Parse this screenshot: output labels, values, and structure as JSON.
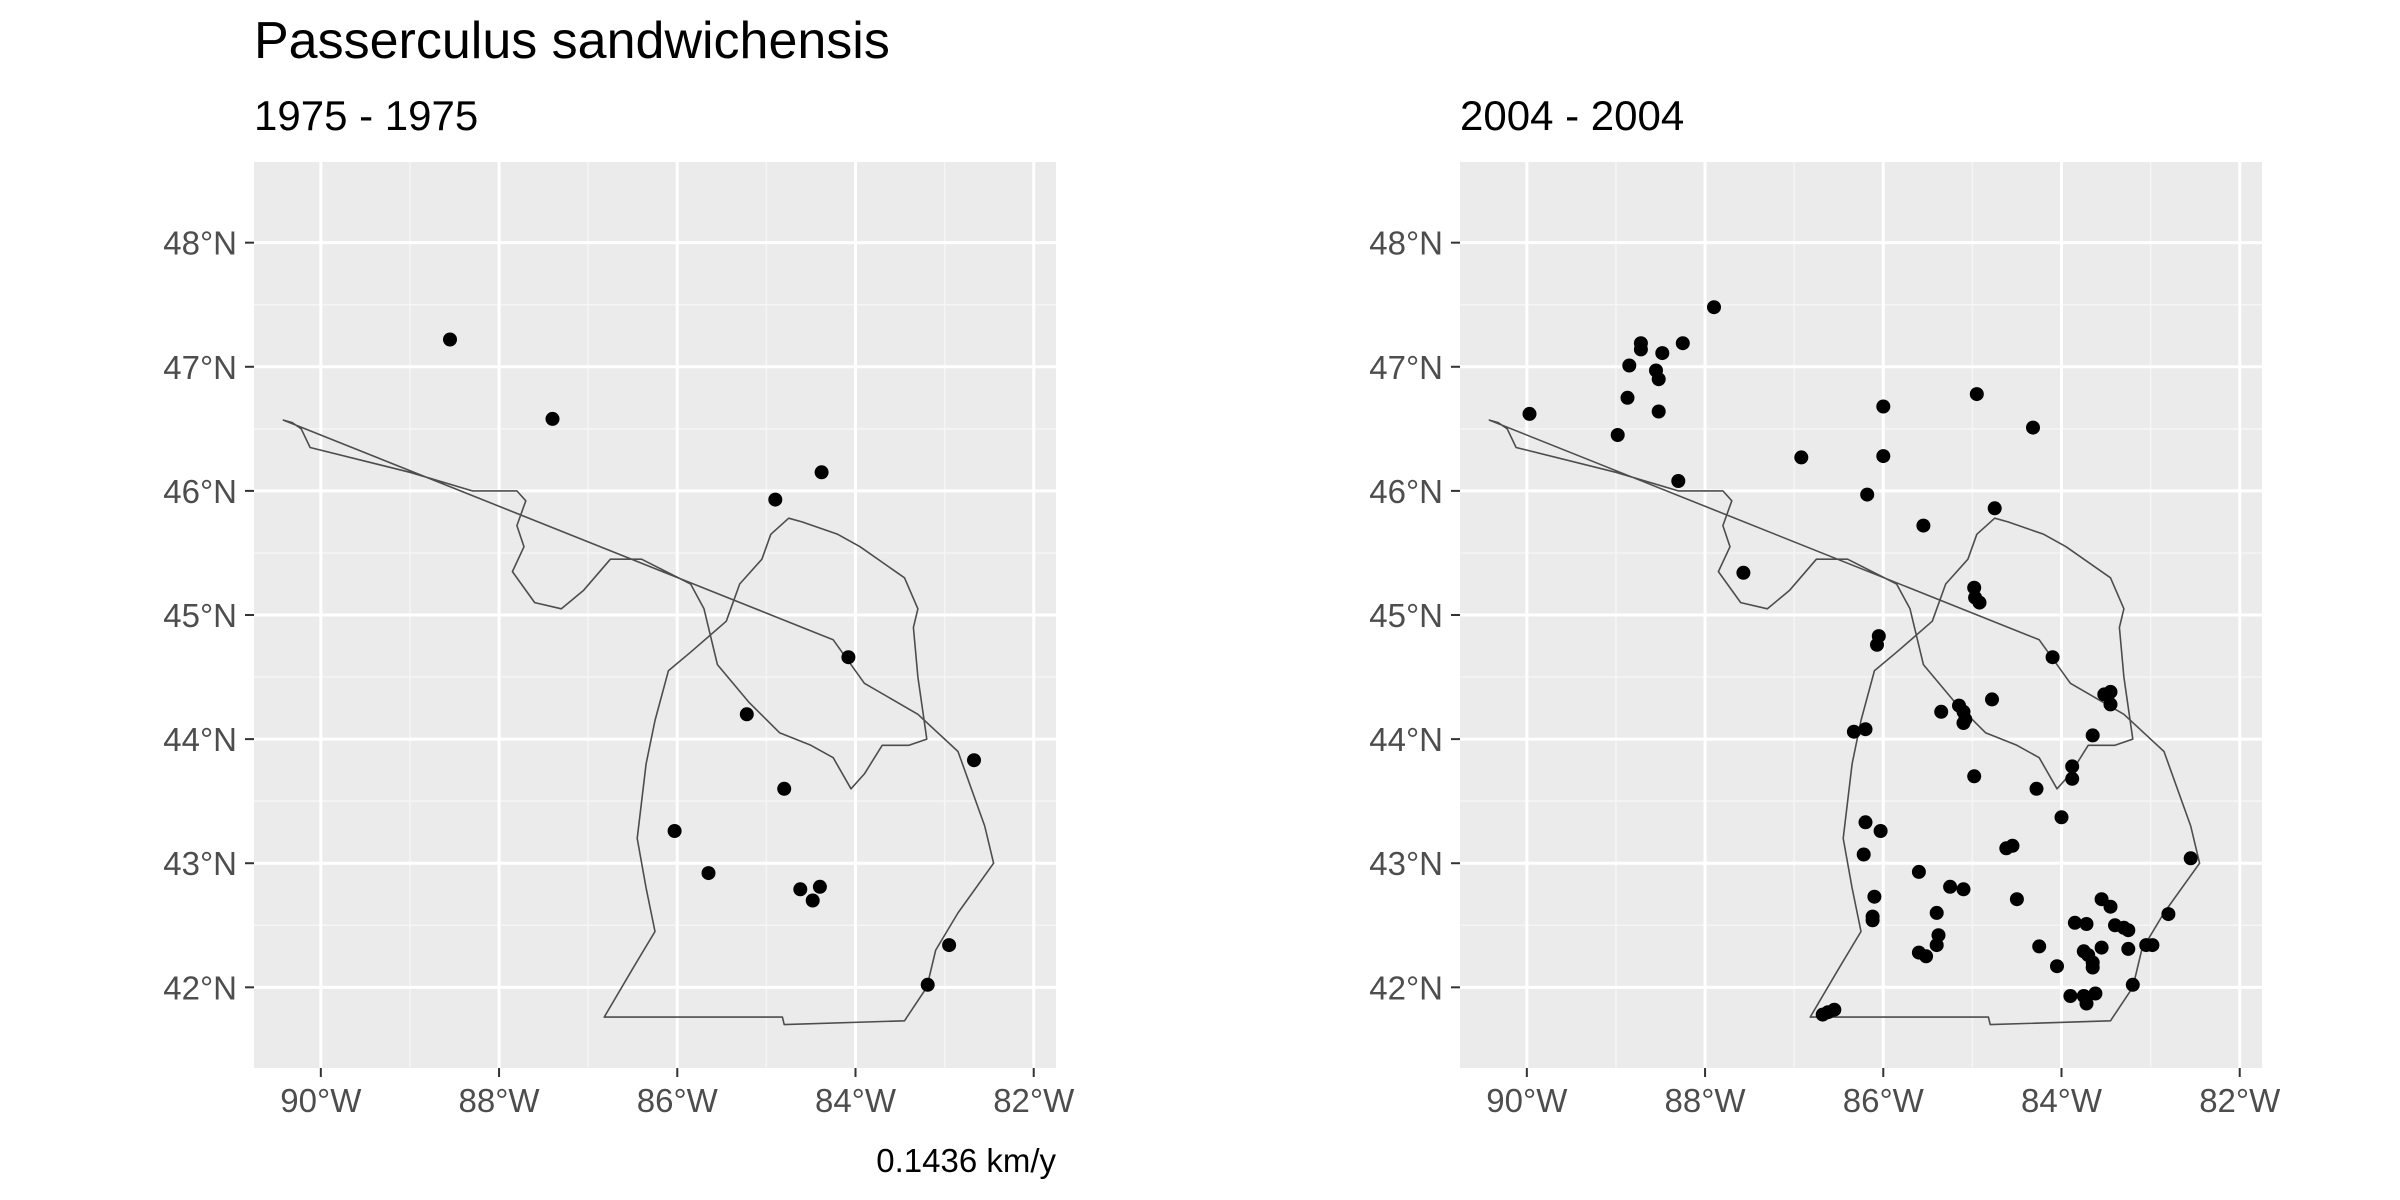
{
  "title": "Passerculus sandwichensis",
  "caption": "0.1436 km/y",
  "colors": {
    "panel_background": "#ebebeb",
    "grid": "#ffffff",
    "point": "#000000",
    "border": "#4d4d4d",
    "tick_text": "#4d4d4d"
  },
  "chart_data": [
    {
      "type": "scatter",
      "subtitle": "1975 - 1975",
      "xlim": [
        -90.75,
        -81.75
      ],
      "ylim": [
        41.35,
        48.65
      ],
      "x_ticks": [
        -90,
        -88,
        -86,
        -84,
        -82
      ],
      "x_tick_labels": [
        "90°W",
        "88°W",
        "86°W",
        "84°W",
        "82°W"
      ],
      "y_ticks": [
        42,
        43,
        44,
        45,
        46,
        47,
        48
      ],
      "y_tick_labels": [
        "42°N",
        "43°N",
        "44°N",
        "45°N",
        "46°N",
        "47°N",
        "48°N"
      ],
      "grid": true,
      "points": [
        {
          "lon": -88.55,
          "lat": 47.22
        },
        {
          "lon": -87.4,
          "lat": 46.58
        },
        {
          "lon": -84.38,
          "lat": 46.15
        },
        {
          "lon": -84.9,
          "lat": 45.93
        },
        {
          "lon": -84.08,
          "lat": 44.66
        },
        {
          "lon": -85.22,
          "lat": 44.2
        },
        {
          "lon": -84.8,
          "lat": 43.6
        },
        {
          "lon": -86.03,
          "lat": 43.26
        },
        {
          "lon": -85.65,
          "lat": 42.92
        },
        {
          "lon": -84.62,
          "lat": 42.79
        },
        {
          "lon": -84.4,
          "lat": 42.81
        },
        {
          "lon": -84.48,
          "lat": 42.7
        },
        {
          "lon": -82.67,
          "lat": 43.83
        },
        {
          "lon": -82.95,
          "lat": 42.34
        },
        {
          "lon": -83.19,
          "lat": 42.02
        }
      ]
    },
    {
      "type": "scatter",
      "subtitle": "2004 - 2004",
      "xlim": [
        -90.75,
        -81.75
      ],
      "ylim": [
        41.35,
        48.65
      ],
      "x_ticks": [
        -90,
        -88,
        -86,
        -84,
        -82
      ],
      "x_tick_labels": [
        "90°W",
        "88°W",
        "86°W",
        "84°W",
        "82°W"
      ],
      "y_ticks": [
        42,
        43,
        44,
        45,
        46,
        47,
        48
      ],
      "y_tick_labels": [
        "42°N",
        "43°N",
        "44°N",
        "45°N",
        "46°N",
        "47°N",
        "48°N"
      ],
      "grid": true,
      "points": [
        {
          "lon": -89.97,
          "lat": 46.62
        },
        {
          "lon": -88.98,
          "lat": 46.45
        },
        {
          "lon": -88.87,
          "lat": 46.75
        },
        {
          "lon": -88.85,
          "lat": 47.01
        },
        {
          "lon": -88.72,
          "lat": 47.14
        },
        {
          "lon": -88.72,
          "lat": 47.19
        },
        {
          "lon": -88.55,
          "lat": 46.97
        },
        {
          "lon": -88.52,
          "lat": 46.9
        },
        {
          "lon": -88.48,
          "lat": 47.11
        },
        {
          "lon": -88.52,
          "lat": 46.64
        },
        {
          "lon": -88.25,
          "lat": 47.19
        },
        {
          "lon": -87.9,
          "lat": 47.48
        },
        {
          "lon": -88.3,
          "lat": 46.08
        },
        {
          "lon": -86.92,
          "lat": 46.27
        },
        {
          "lon": -87.57,
          "lat": 45.34
        },
        {
          "lon": -86.0,
          "lat": 46.68
        },
        {
          "lon": -86.0,
          "lat": 46.28
        },
        {
          "lon": -86.18,
          "lat": 45.97
        },
        {
          "lon": -84.95,
          "lat": 46.78
        },
        {
          "lon": -84.32,
          "lat": 46.51
        },
        {
          "lon": -84.75,
          "lat": 45.86
        },
        {
          "lon": -85.55,
          "lat": 45.72
        },
        {
          "lon": -84.98,
          "lat": 45.22
        },
        {
          "lon": -84.97,
          "lat": 45.14
        },
        {
          "lon": -84.92,
          "lat": 45.1
        },
        {
          "lon": -86.05,
          "lat": 44.83
        },
        {
          "lon": -86.07,
          "lat": 44.76
        },
        {
          "lon": -84.1,
          "lat": 44.66
        },
        {
          "lon": -85.35,
          "lat": 44.22
        },
        {
          "lon": -85.15,
          "lat": 44.27
        },
        {
          "lon": -85.1,
          "lat": 44.22
        },
        {
          "lon": -85.08,
          "lat": 44.16
        },
        {
          "lon": -85.1,
          "lat": 44.13
        },
        {
          "lon": -84.78,
          "lat": 44.32
        },
        {
          "lon": -83.52,
          "lat": 44.36
        },
        {
          "lon": -83.45,
          "lat": 44.38
        },
        {
          "lon": -83.45,
          "lat": 44.28
        },
        {
          "lon": -83.65,
          "lat": 44.03
        },
        {
          "lon": -86.33,
          "lat": 44.06
        },
        {
          "lon": -86.2,
          "lat": 44.08
        },
        {
          "lon": -84.98,
          "lat": 43.7
        },
        {
          "lon": -84.28,
          "lat": 43.6
        },
        {
          "lon": -83.88,
          "lat": 43.78
        },
        {
          "lon": -83.88,
          "lat": 43.68
        },
        {
          "lon": -84.0,
          "lat": 43.37
        },
        {
          "lon": -86.2,
          "lat": 43.33
        },
        {
          "lon": -86.03,
          "lat": 43.26
        },
        {
          "lon": -86.22,
          "lat": 43.07
        },
        {
          "lon": -84.62,
          "lat": 43.12
        },
        {
          "lon": -84.55,
          "lat": 43.14
        },
        {
          "lon": -85.6,
          "lat": 42.93
        },
        {
          "lon": -85.25,
          "lat": 42.81
        },
        {
          "lon": -85.1,
          "lat": 42.79
        },
        {
          "lon": -86.1,
          "lat": 42.73
        },
        {
          "lon": -86.12,
          "lat": 42.57
        },
        {
          "lon": -86.12,
          "lat": 42.54
        },
        {
          "lon": -85.4,
          "lat": 42.6
        },
        {
          "lon": -84.5,
          "lat": 42.71
        },
        {
          "lon": -85.38,
          "lat": 42.42
        },
        {
          "lon": -85.4,
          "lat": 42.34
        },
        {
          "lon": -85.6,
          "lat": 42.28
        },
        {
          "lon": -85.52,
          "lat": 42.25
        },
        {
          "lon": -84.25,
          "lat": 42.33
        },
        {
          "lon": -84.05,
          "lat": 42.17
        },
        {
          "lon": -83.85,
          "lat": 42.52
        },
        {
          "lon": -83.72,
          "lat": 42.51
        },
        {
          "lon": -83.55,
          "lat": 42.71
        },
        {
          "lon": -83.45,
          "lat": 42.65
        },
        {
          "lon": -83.4,
          "lat": 42.5
        },
        {
          "lon": -83.3,
          "lat": 42.48
        },
        {
          "lon": -83.25,
          "lat": 42.46
        },
        {
          "lon": -83.05,
          "lat": 42.34
        },
        {
          "lon": -82.98,
          "lat": 42.34
        },
        {
          "lon": -83.25,
          "lat": 42.31
        },
        {
          "lon": -83.55,
          "lat": 42.32
        },
        {
          "lon": -82.8,
          "lat": 42.59
        },
        {
          "lon": -83.75,
          "lat": 42.29
        },
        {
          "lon": -83.7,
          "lat": 42.26
        },
        {
          "lon": -83.65,
          "lat": 42.2
        },
        {
          "lon": -83.65,
          "lat": 42.16
        },
        {
          "lon": -83.2,
          "lat": 42.02
        },
        {
          "lon": -83.9,
          "lat": 41.93
        },
        {
          "lon": -83.75,
          "lat": 41.93
        },
        {
          "lon": -83.62,
          "lat": 41.95
        },
        {
          "lon": -83.72,
          "lat": 41.87
        },
        {
          "lon": -82.55,
          "lat": 43.04
        },
        {
          "lon": -86.68,
          "lat": 41.78
        },
        {
          "lon": -86.62,
          "lat": 41.8
        },
        {
          "lon": -86.55,
          "lat": 41.82
        }
      ]
    }
  ],
  "boundary": [
    [
      -90.42,
      46.57
    ],
    [
      -90.32,
      46.55
    ],
    [
      -90.22,
      46.5
    ],
    [
      -90.12,
      46.35
    ],
    [
      -89.0,
      46.15
    ],
    [
      -88.3,
      46.0
    ],
    [
      -88.0,
      46.0
    ],
    [
      -87.8,
      46.0
    ],
    [
      -87.7,
      45.92
    ],
    [
      -87.8,
      45.72
    ],
    [
      -87.72,
      45.55
    ],
    [
      -87.85,
      45.35
    ],
    [
      -87.6,
      45.1
    ],
    [
      -87.3,
      45.05
    ],
    [
      -87.05,
      45.2
    ],
    [
      -86.75,
      45.45
    ],
    [
      -86.4,
      45.45
    ],
    [
      -85.85,
      45.25
    ],
    [
      -85.7,
      45.05
    ],
    [
      -85.55,
      44.6
    ],
    [
      -85.2,
      44.3
    ],
    [
      -84.85,
      44.05
    ],
    [
      -84.5,
      43.95
    ],
    [
      -84.25,
      43.85
    ],
    [
      -84.05,
      43.6
    ],
    [
      -83.9,
      43.72
    ],
    [
      -83.7,
      43.95
    ],
    [
      -83.4,
      43.95
    ],
    [
      -83.2,
      44.0
    ],
    [
      -83.3,
      44.5
    ],
    [
      -83.35,
      44.9
    ],
    [
      -83.3,
      45.05
    ],
    [
      -83.45,
      45.3
    ],
    [
      -83.95,
      45.55
    ],
    [
      -84.2,
      45.65
    ],
    [
      -84.6,
      45.75
    ],
    [
      -84.75,
      45.78
    ],
    [
      -84.95,
      45.65
    ],
    [
      -85.05,
      45.45
    ],
    [
      -85.3,
      45.25
    ],
    [
      -85.45,
      44.95
    ],
    [
      -85.85,
      44.7
    ],
    [
      -86.1,
      44.55
    ],
    [
      -86.25,
      44.15
    ],
    [
      -86.35,
      43.8
    ],
    [
      -86.45,
      43.2
    ],
    [
      -86.35,
      42.8
    ],
    [
      -86.25,
      42.45
    ],
    [
      -86.5,
      42.15
    ],
    [
      -86.82,
      41.76
    ],
    [
      -84.82,
      41.76
    ],
    [
      -84.8,
      41.7
    ],
    [
      -83.45,
      41.73
    ],
    [
      -83.2,
      42.0
    ],
    [
      -83.1,
      42.3
    ],
    [
      -82.85,
      42.6
    ],
    [
      -82.45,
      43.0
    ],
    [
      -82.55,
      43.3
    ],
    [
      -82.85,
      43.9
    ],
    [
      -83.3,
      44.2
    ],
    [
      -83.9,
      44.45
    ],
    [
      -84.25,
      44.8
    ]
  ]
}
